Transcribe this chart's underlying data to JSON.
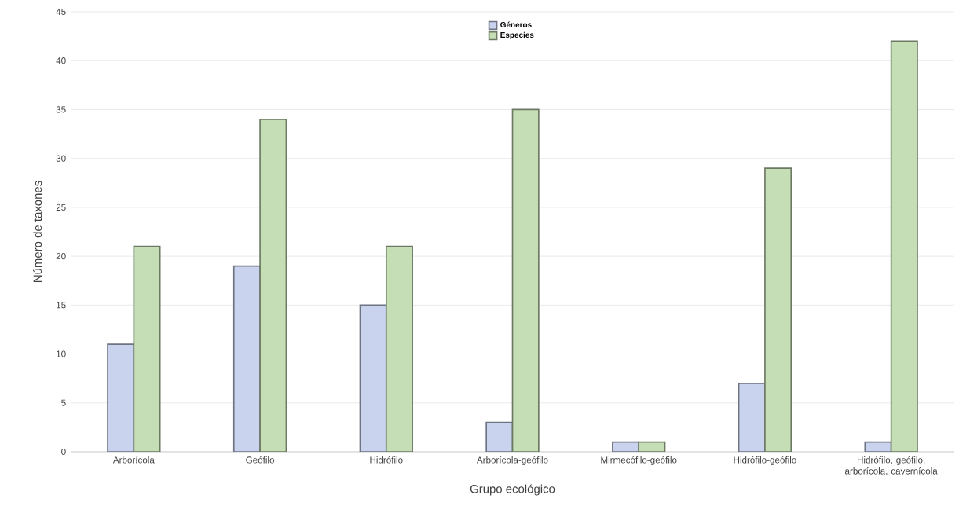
{
  "chart_data": {
    "type": "bar",
    "xlabel": "Grupo ecológico",
    "ylabel": "Número de taxones",
    "categories": [
      "Arborícola",
      "Geófilo",
      "Hidrófilo",
      "Arborícola-geófilo",
      "Mirmecófilo-geófilo",
      "Hidrófilo-geófilo",
      "Hidrófilo, geófilo, arborícola, cavernícola"
    ],
    "series": [
      {
        "name": "Géneros",
        "color": "#c9d3ee",
        "values": [
          11,
          19,
          15,
          3,
          1,
          7,
          1
        ]
      },
      {
        "name": "Especies",
        "color": "#c5deb5",
        "values": [
          21,
          34,
          21,
          35,
          1,
          29,
          42
        ]
      }
    ],
    "ylim": [
      0,
      45
    ],
    "yticks": [
      0,
      5,
      10,
      15,
      20,
      25,
      30,
      35,
      40,
      45
    ],
    "grid": "y",
    "legend": "top"
  }
}
